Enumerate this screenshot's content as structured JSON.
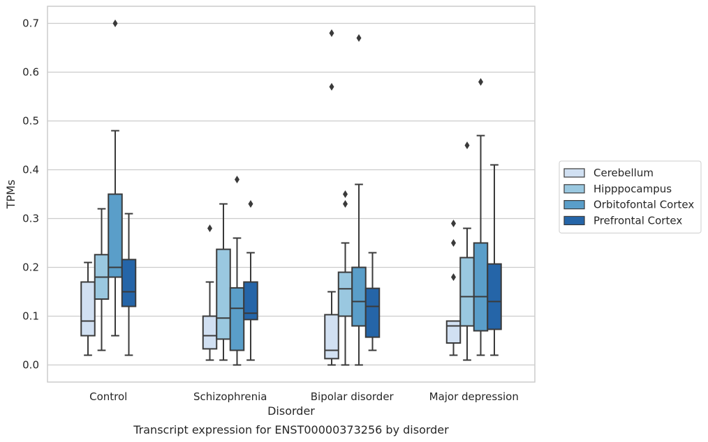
{
  "caption": "Transcript expression for ENST00000373256 by disorder",
  "chart_data": {
    "type": "box",
    "xlabel": "Disorder",
    "ylabel": "TPMs",
    "ylim": [
      -0.035,
      0.735
    ],
    "yticks": [
      0.0,
      0.1,
      0.2,
      0.3,
      0.4,
      0.5,
      0.6,
      0.7
    ],
    "ytick_labels": [
      "0.0",
      "0.1",
      "0.2",
      "0.3",
      "0.4",
      "0.5",
      "0.6",
      "0.7"
    ],
    "grid": "horizontal",
    "legend_position": "right",
    "categories": [
      "Control",
      "Schizophrenia",
      "Bipolar disorder",
      "Major depression"
    ],
    "series": [
      {
        "name": "Cerebellum",
        "color": "#d1e0f2",
        "boxes": [
          {
            "min": 0.02,
            "q1": 0.06,
            "median": 0.09,
            "q3": 0.17,
            "max": 0.21,
            "outliers": []
          },
          {
            "min": 0.01,
            "q1": 0.033,
            "median": 0.06,
            "q3": 0.1,
            "max": 0.17,
            "outliers": [
              0.28
            ]
          },
          {
            "min": 0.0,
            "q1": 0.013,
            "median": 0.03,
            "q3": 0.103,
            "max": 0.15,
            "outliers": [
              0.57,
              0.68
            ]
          },
          {
            "min": 0.02,
            "q1": 0.045,
            "median": 0.08,
            "q3": 0.09,
            "max": 0.09,
            "outliers": [
              0.18,
              0.25,
              0.29
            ]
          }
        ]
      },
      {
        "name": "Hipppocampus",
        "color": "#9ac8e0",
        "boxes": [
          {
            "min": 0.03,
            "q1": 0.135,
            "median": 0.18,
            "q3": 0.226,
            "max": 0.32,
            "outliers": []
          },
          {
            "min": 0.01,
            "q1": 0.053,
            "median": 0.096,
            "q3": 0.237,
            "max": 0.33,
            "outliers": []
          },
          {
            "min": 0.0,
            "q1": 0.1,
            "median": 0.156,
            "q3": 0.19,
            "max": 0.25,
            "outliers": [
              0.33,
              0.35
            ]
          },
          {
            "min": 0.01,
            "q1": 0.08,
            "median": 0.14,
            "q3": 0.22,
            "max": 0.28,
            "outliers": [
              0.45
            ]
          }
        ]
      },
      {
        "name": "Orbitofontal Cortex",
        "color": "#5a9ec9",
        "boxes": [
          {
            "min": 0.06,
            "q1": 0.18,
            "median": 0.2,
            "q3": 0.35,
            "max": 0.48,
            "outliers": [
              0.7
            ]
          },
          {
            "min": 0.0,
            "q1": 0.03,
            "median": 0.116,
            "q3": 0.158,
            "max": 0.26,
            "outliers": [
              0.38
            ]
          },
          {
            "min": 0.0,
            "q1": 0.08,
            "median": 0.13,
            "q3": 0.2,
            "max": 0.37,
            "outliers": [
              0.67
            ]
          },
          {
            "min": 0.02,
            "q1": 0.07,
            "median": 0.14,
            "q3": 0.25,
            "max": 0.47,
            "outliers": [
              0.58
            ]
          }
        ]
      },
      {
        "name": "Prefrontal Cortex",
        "color": "#2565a8",
        "boxes": [
          {
            "min": 0.02,
            "q1": 0.12,
            "median": 0.15,
            "q3": 0.216,
            "max": 0.31,
            "outliers": []
          },
          {
            "min": 0.01,
            "q1": 0.093,
            "median": 0.106,
            "q3": 0.17,
            "max": 0.23,
            "outliers": [
              0.33
            ]
          },
          {
            "min": 0.03,
            "q1": 0.057,
            "median": 0.12,
            "q3": 0.157,
            "max": 0.23,
            "outliers": []
          },
          {
            "min": 0.02,
            "q1": 0.073,
            "median": 0.13,
            "q3": 0.207,
            "max": 0.41,
            "outliers": []
          }
        ]
      }
    ]
  }
}
